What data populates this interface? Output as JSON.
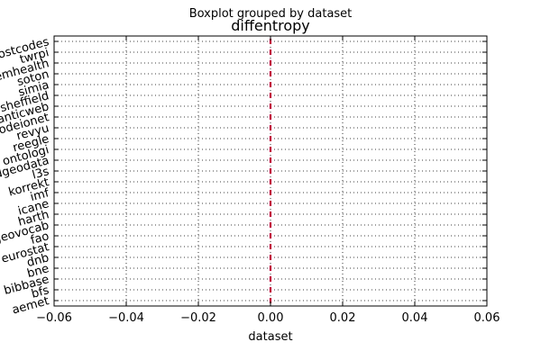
{
  "chart_data": {
    "type": "boxplot",
    "suptitle": "Boxplot grouped by dataset",
    "title": "diffentropy",
    "xlabel": "dataset",
    "xlim": [
      -0.06,
      0.06
    ],
    "xticks": [
      "−0.06",
      "−0.04",
      "−0.02",
      "0.00",
      "0.02",
      "0.04",
      "0.06"
    ],
    "xtick_values": [
      -0.06,
      -0.04,
      -0.02,
      0.0,
      0.02,
      0.04,
      0.06
    ],
    "grid": true,
    "categories": [
      "aemet",
      "bfs",
      "bibbase",
      "bne",
      "dnb",
      "eurostat",
      "fao",
      "geovocab",
      "harth",
      "icane",
      "imf",
      "korrekt",
      "l3s",
      "linkedgeodata",
      "ontologi",
      "reegle",
      "revyu",
      "rodeionet",
      "semanticweb",
      "sheffield",
      "simia",
      "soton",
      "systemhealth",
      "twrpi",
      "uspostcodes"
    ],
    "values": [
      0,
      0,
      0,
      0,
      0,
      0,
      0,
      0,
      0,
      0,
      0,
      0,
      0,
      0,
      0,
      0,
      0,
      0,
      0,
      0,
      0,
      0,
      0,
      0,
      0
    ],
    "colors": {
      "median": "#c0003c",
      "box": "#000080"
    }
  }
}
